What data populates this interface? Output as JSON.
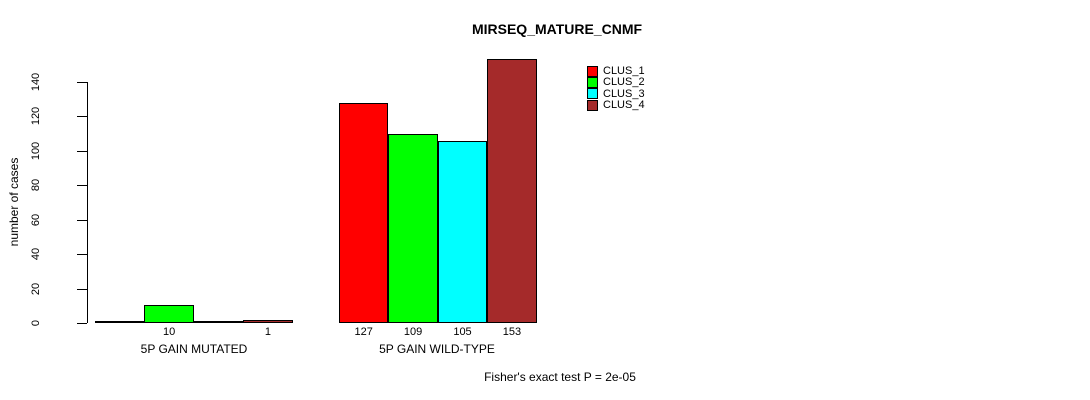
{
  "chart_data": {
    "type": "bar",
    "title": "MIRSEQ_MATURE_CNMF",
    "ylabel": "number of cases",
    "xlabel": "",
    "ylim": [
      0,
      140
    ],
    "yticks": [
      0,
      20,
      40,
      60,
      80,
      100,
      120,
      140
    ],
    "grid": false,
    "legend_position": "top-right-inside",
    "legend": [
      {
        "label": "CLUS_1",
        "color": "#FF0000"
      },
      {
        "label": "CLUS_2",
        "color": "#00FF00"
      },
      {
        "label": "CLUS_3",
        "color": "#00FFFF"
      },
      {
        "label": "CLUS_4",
        "color": "#A52A2A"
      }
    ],
    "categories": [
      "5P GAIN MUTATED",
      "5P GAIN WILD-TYPE"
    ],
    "groups": [
      {
        "label": "5P GAIN MUTATED",
        "bars": [
          {
            "series": "CLUS_1",
            "value": 0,
            "count_label": "",
            "color": "#FF0000"
          },
          {
            "series": "CLUS_2",
            "value": 10,
            "count_label": "10",
            "color": "#00FF00"
          },
          {
            "series": "CLUS_3",
            "value": 0,
            "count_label": "",
            "color": "#00FFFF"
          },
          {
            "series": "CLUS_4",
            "value": 1,
            "count_label": "1",
            "color": "#A52A2A"
          }
        ]
      },
      {
        "label": "5P GAIN WILD-TYPE",
        "bars": [
          {
            "series": "CLUS_1",
            "value": 127,
            "count_label": "127",
            "color": "#FF0000"
          },
          {
            "series": "CLUS_2",
            "value": 109,
            "count_label": "109",
            "color": "#00FF00"
          },
          {
            "series": "CLUS_3",
            "value": 105,
            "count_label": "105",
            "color": "#00FFFF"
          },
          {
            "series": "CLUS_4",
            "value": 153,
            "count_label": "153",
            "color": "#A52A2A"
          }
        ]
      }
    ],
    "footer": "Fisher's exact test P = 2e-05"
  }
}
